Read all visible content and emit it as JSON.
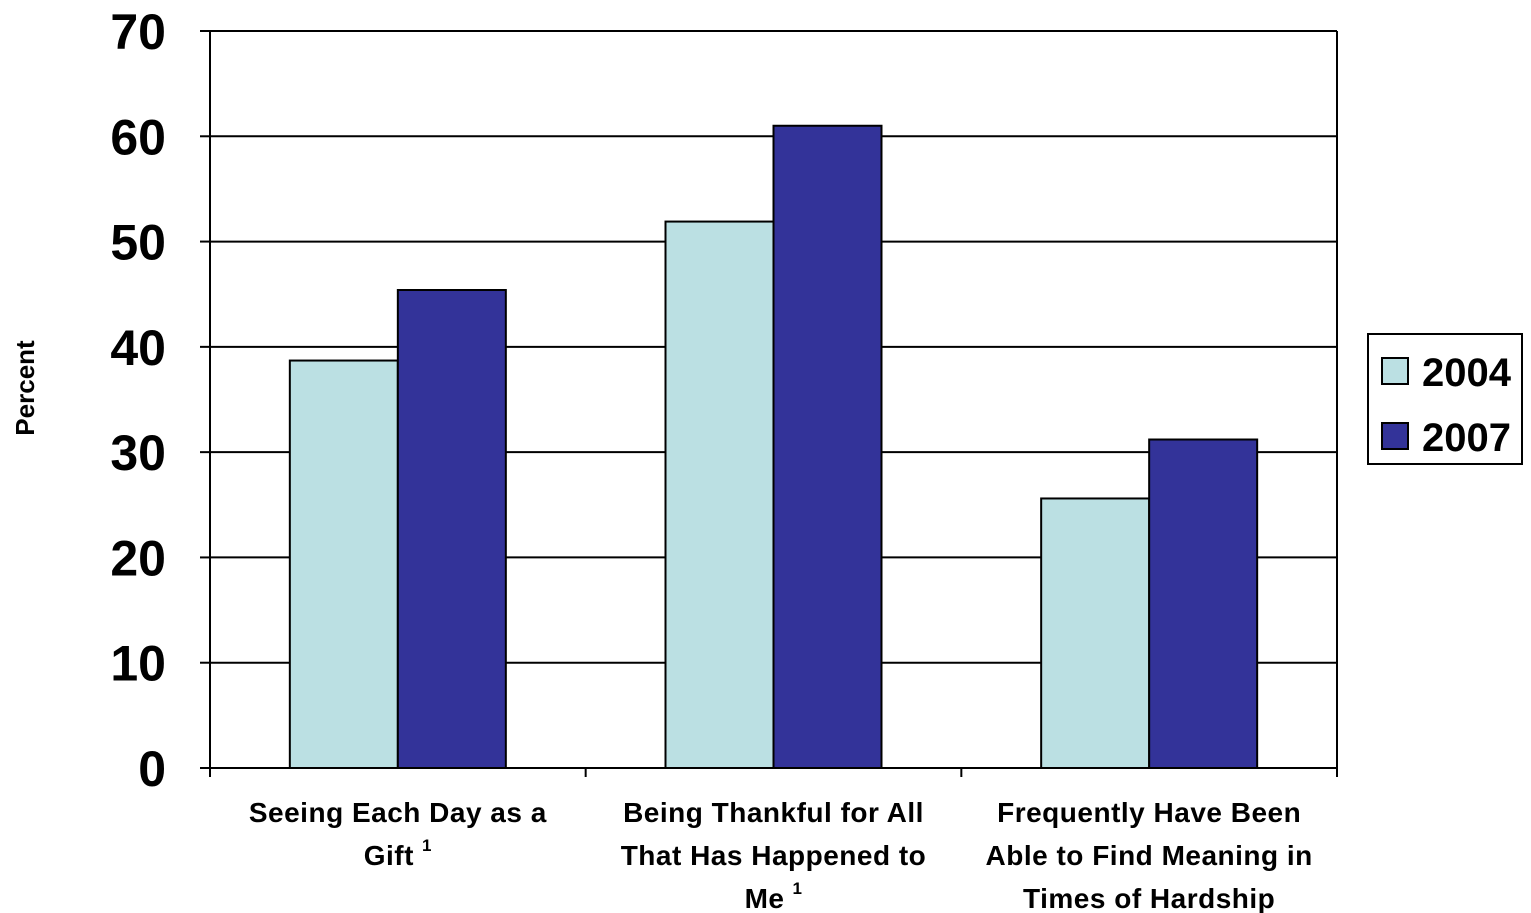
{
  "chart_data": {
    "type": "bar",
    "ylabel": "Percent",
    "xlabel": "",
    "ylim": [
      0,
      70
    ],
    "yticks": [
      "0",
      "10",
      "20",
      "30",
      "40",
      "50",
      "60",
      "70"
    ],
    "grid": true,
    "legend_position": "right",
    "categories": [
      {
        "lines": [
          "Seeing Each Day as a",
          "Gift"
        ],
        "footnote": "1"
      },
      {
        "lines": [
          "Being Thankful for All",
          "That Has Happened to",
          "Me"
        ],
        "footnote": "1"
      },
      {
        "lines": [
          "Frequently Have Been",
          "Able to Find Meaning in",
          "Times of Hardship"
        ],
        "footnote": ""
      }
    ],
    "series": [
      {
        "name": "2004",
        "color": "#bbe0e3",
        "values": [
          38.7,
          51.9,
          25.6
        ]
      },
      {
        "name": "2007",
        "color": "#333399",
        "values": [
          45.4,
          61.0,
          31.2
        ]
      }
    ]
  }
}
